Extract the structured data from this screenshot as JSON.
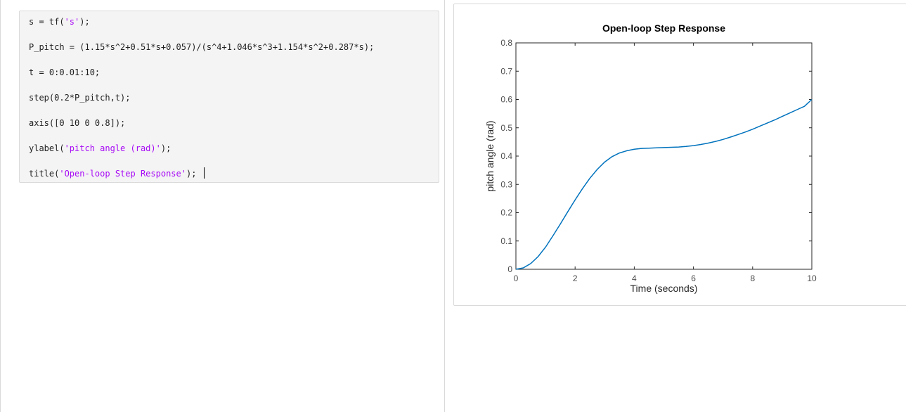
{
  "code": {
    "lines": [
      {
        "pre": "s = tf(",
        "str": "'s'",
        "post": ");"
      },
      {
        "pre": "P_pitch = (1.15*s^2+0.51*s+0.057)/(s^4+1.046*s^3+1.154*s^2+0.287*s);",
        "str": "",
        "post": ""
      },
      {
        "pre": "t = 0:0.01:10;",
        "str": "",
        "post": ""
      },
      {
        "pre": "step(0.2*P_pitch,t);",
        "str": "",
        "post": ""
      },
      {
        "pre": "axis([0 10 0 0.8]);",
        "str": "",
        "post": ""
      },
      {
        "pre": "ylabel(",
        "str": "'pitch angle (rad)'",
        "post": ");"
      },
      {
        "pre": "title(",
        "str": "'Open-loop Step Response'",
        "post": "); "
      }
    ]
  },
  "chart_data": {
    "type": "line",
    "title": "Open-loop Step Response",
    "xlabel": "Time (seconds)",
    "ylabel": "pitch angle (rad)",
    "xlim": [
      0,
      10
    ],
    "ylim": [
      0,
      0.8
    ],
    "x_ticks": [
      "0",
      "2",
      "4",
      "6",
      "8",
      "10"
    ],
    "y_ticks": [
      "0",
      "0.1",
      "0.2",
      "0.3",
      "0.4",
      "0.5",
      "0.6",
      "0.7",
      "0.8"
    ],
    "grid": false,
    "line_color": "#0072bd",
    "series": [
      {
        "x": [
          0,
          0.25,
          0.5,
          0.75,
          1,
          1.25,
          1.5,
          1.75,
          2,
          2.25,
          2.5,
          2.75,
          3,
          3.25,
          3.5,
          3.75,
          4,
          4.25,
          4.5,
          4.75,
          5,
          5.25,
          5.5,
          5.75,
          6,
          6.25,
          6.5,
          6.75,
          7,
          7.25,
          7.5,
          7.75,
          8,
          8.25,
          8.5,
          8.75,
          9,
          9.25,
          9.5,
          9.75,
          10
        ],
        "y": [
          0,
          0.005,
          0.02,
          0.045,
          0.078,
          0.118,
          0.16,
          0.203,
          0.245,
          0.285,
          0.322,
          0.353,
          0.379,
          0.398,
          0.411,
          0.419,
          0.424,
          0.427,
          0.428,
          0.429,
          0.43,
          0.431,
          0.432,
          0.434,
          0.437,
          0.441,
          0.446,
          0.452,
          0.459,
          0.467,
          0.476,
          0.485,
          0.495,
          0.506,
          0.517,
          0.528,
          0.54,
          0.552,
          0.564,
          0.576,
          0.6
        ]
      }
    ]
  }
}
